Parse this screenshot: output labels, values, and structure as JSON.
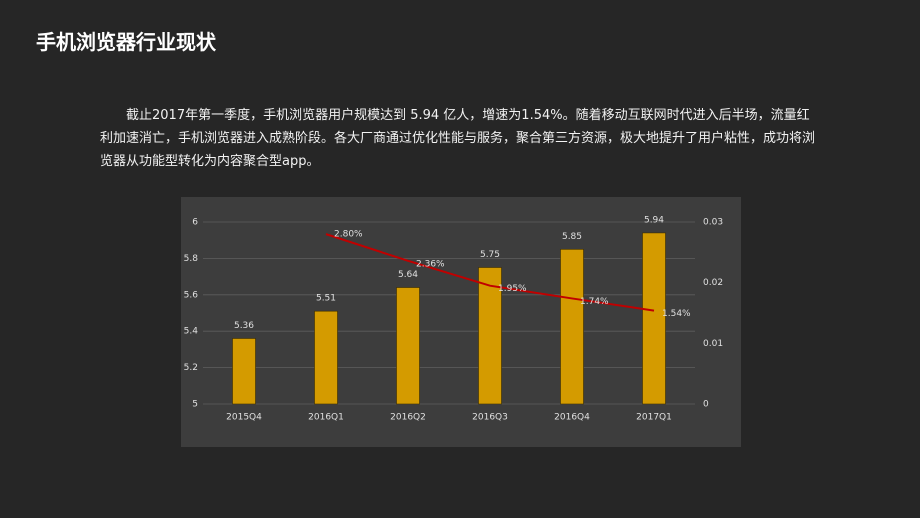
{
  "title": "手机浏览器行业现状",
  "paragraph": "截止2017年第一季度，手机浏览器用户规模达到 5.94 亿人，增速为1.54%。随着移动互联网时代进入后半场，流量红利加速消亡，手机浏览器进入成熟阶段。各大厂商通过优化性能与服务，聚合第三方资源，极大地提升了用户粘性，成功将浏览器从功能型转化为内容聚合型app。",
  "chart_data": {
    "type": "bar",
    "categories": [
      "2015Q4",
      "2016Q1",
      "2016Q2",
      "2016Q3",
      "2016Q4",
      "2017Q1"
    ],
    "series": [
      {
        "type": "bar",
        "color": "#d49b00",
        "values": [
          5.36,
          5.51,
          5.64,
          5.75,
          5.85,
          5.94
        ]
      },
      {
        "type": "line",
        "axis": "y2",
        "color": "#c00000",
        "values": [
          null,
          0.028,
          0.0236,
          0.0195,
          0.0174,
          0.0154
        ],
        "value_labels": [
          null,
          "2.80%",
          "2.36%",
          "1.95%",
          "1.74%",
          "1.54%"
        ]
      }
    ],
    "ylim": [
      5,
      6
    ],
    "yticks": [
      5,
      5.2,
      5.4,
      5.6,
      5.8,
      6
    ],
    "y2lim": [
      0,
      0.03
    ],
    "y2ticks": [
      0,
      0.01,
      0.02,
      0.03
    ],
    "grid": true
  }
}
